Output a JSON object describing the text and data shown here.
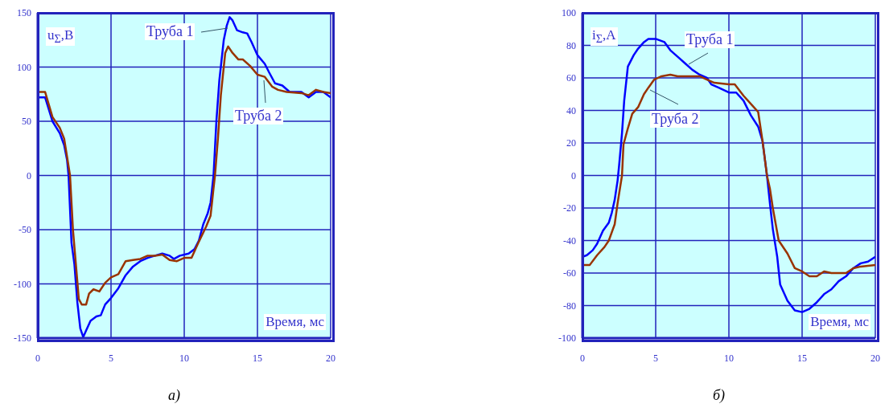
{
  "chart_data": [
    {
      "type": "line",
      "title": "а)",
      "xlabel": "Время, мс",
      "ylabel": "u$_{Σ}$,В",
      "xlim": [
        0,
        20
      ],
      "xticks": [
        0,
        5,
        10,
        15,
        20
      ],
      "ylim": [
        -150,
        150
      ],
      "yticks": [
        -150,
        -100,
        -50,
        0,
        50,
        100,
        150
      ],
      "grid": true,
      "series": [
        {
          "name": "Труба 1",
          "color": "#0000ff",
          "x": [
            0,
            0.5,
            1,
            1.5,
            1.8,
            2,
            2.1,
            2.3,
            2.5,
            2.7,
            2.9,
            3.1,
            3.3,
            3.6,
            4,
            4.3,
            4.6,
            5,
            5.5,
            6,
            6.5,
            7,
            7.5,
            8,
            8.5,
            9,
            9.3,
            9.7,
            10.3,
            10.7,
            11,
            11.3,
            11.6,
            11.8,
            12,
            12.2,
            12.4,
            12.7,
            12.9,
            13.1,
            13.3,
            13.6,
            14,
            14.3,
            14.6,
            15,
            15.5,
            15.8,
            16.2,
            16.7,
            17.2,
            18,
            18.5,
            19,
            19.5,
            20
          ],
          "values": [
            72,
            72,
            50,
            39,
            28,
            14,
            0,
            -62,
            -82,
            -117,
            -141,
            -149,
            -143,
            -134,
            -130,
            -129,
            -119,
            -113,
            -104,
            -92,
            -84,
            -79,
            -76,
            -74,
            -72,
            -74,
            -77,
            -74,
            -72,
            -68,
            -60,
            -45,
            -35,
            -25,
            0,
            51,
            88,
            125,
            138,
            146,
            143,
            134,
            132,
            131,
            123,
            111,
            103,
            95,
            85,
            83,
            77,
            77,
            72,
            77,
            77,
            72
          ]
        },
        {
          "name": "Труба 2",
          "color": "#993300",
          "x": [
            0,
            0.5,
            1,
            1.5,
            1.8,
            2,
            2.2,
            2.4,
            2.6,
            2.8,
            3,
            3.3,
            3.5,
            3.8,
            4.2,
            4.6,
            5,
            5.5,
            6,
            6.5,
            7,
            7.5,
            8,
            8.5,
            9,
            9.5,
            10,
            10.5,
            11,
            11.5,
            11.8,
            12,
            12.1,
            12.3,
            12.5,
            12.8,
            13,
            13.3,
            13.7,
            14,
            14.5,
            15,
            15.5,
            16,
            16.4,
            17,
            18,
            18.5,
            19,
            19.5,
            20
          ],
          "values": [
            77,
            77,
            54,
            44,
            34,
            17,
            0,
            -50,
            -82,
            -114,
            -119,
            -119,
            -109,
            -105,
            -107,
            -99,
            -94,
            -91,
            -79,
            -78,
            -77,
            -74,
            -74,
            -73,
            -78,
            -79,
            -76,
            -76,
            -61,
            -47,
            -37,
            -12,
            0,
            34,
            74,
            113,
            119,
            113,
            107,
            107,
            101,
            93,
            91,
            82,
            79,
            77,
            76,
            74,
            79,
            77,
            76
          ]
        }
      ]
    },
    {
      "type": "line",
      "title": "б)",
      "xlabel": "Время, мс",
      "ylabel": "i$_{Σ}$,А",
      "xlim": [
        0,
        20
      ],
      "xticks": [
        0,
        5,
        10,
        15,
        20
      ],
      "ylim": [
        -100,
        100
      ],
      "yticks": [
        -100,
        -80,
        -60,
        -40,
        -20,
        0,
        20,
        40,
        60,
        80,
        100
      ],
      "grid": true,
      "series": [
        {
          "name": "Труба 1",
          "color": "#0000ff",
          "x": [
            0,
            0.3,
            0.7,
            1,
            1.4,
            1.8,
            2,
            2.2,
            2.4,
            2.5,
            2.7,
            2.85,
            3.1,
            3.5,
            3.8,
            4.2,
            4.5,
            5,
            5.6,
            6,
            6.5,
            7,
            7.5,
            8,
            8.5,
            8.8,
            9.3,
            10,
            10.5,
            11,
            11.5,
            12,
            12.3,
            12.6,
            12.8,
            13,
            13.3,
            13.5,
            14,
            14.5,
            15,
            15.5,
            16,
            16.5,
            17,
            17.5,
            18,
            18.5,
            19,
            19.5,
            20
          ],
          "values": [
            -50,
            -49,
            -46,
            -42,
            -34,
            -29,
            -23,
            -15,
            -3,
            6,
            26,
            46,
            67,
            74,
            78,
            82,
            84,
            84,
            82,
            77,
            73,
            69,
            65,
            62,
            60,
            56,
            54,
            51,
            51,
            46,
            37,
            30,
            21,
            0,
            -17,
            -33,
            -50,
            -67,
            -77,
            -83,
            -84,
            -82,
            -78,
            -73,
            -70,
            -65,
            -62,
            -57,
            -54,
            -53,
            -50
          ]
        },
        {
          "name": "Труба 2",
          "color": "#993300",
          "x": [
            0,
            0.5,
            1,
            1.5,
            1.8,
            2.2,
            2.4,
            2.7,
            2.8,
            3.1,
            3.4,
            3.8,
            4.2,
            4.5,
            4.9,
            5.4,
            6,
            6.5,
            7,
            8,
            8.5,
            9,
            10,
            10.4,
            11,
            11.6,
            12,
            12.3,
            12.6,
            12.8,
            13,
            13.4,
            14,
            14.5,
            15,
            15.5,
            16,
            16.5,
            17,
            18,
            18.5,
            19,
            20
          ],
          "values": [
            -55,
            -55,
            -49,
            -44,
            -40,
            -30,
            -17,
            0,
            19,
            29,
            38,
            42,
            50,
            54,
            59,
            61,
            62,
            61,
            61,
            61,
            59,
            57,
            56,
            56,
            49,
            43,
            39,
            21,
            0,
            -8,
            -20,
            -40,
            -48,
            -57,
            -59,
            -62,
            -62,
            -59,
            -60,
            -60,
            -57,
            -56,
            -55
          ]
        }
      ]
    }
  ]
}
